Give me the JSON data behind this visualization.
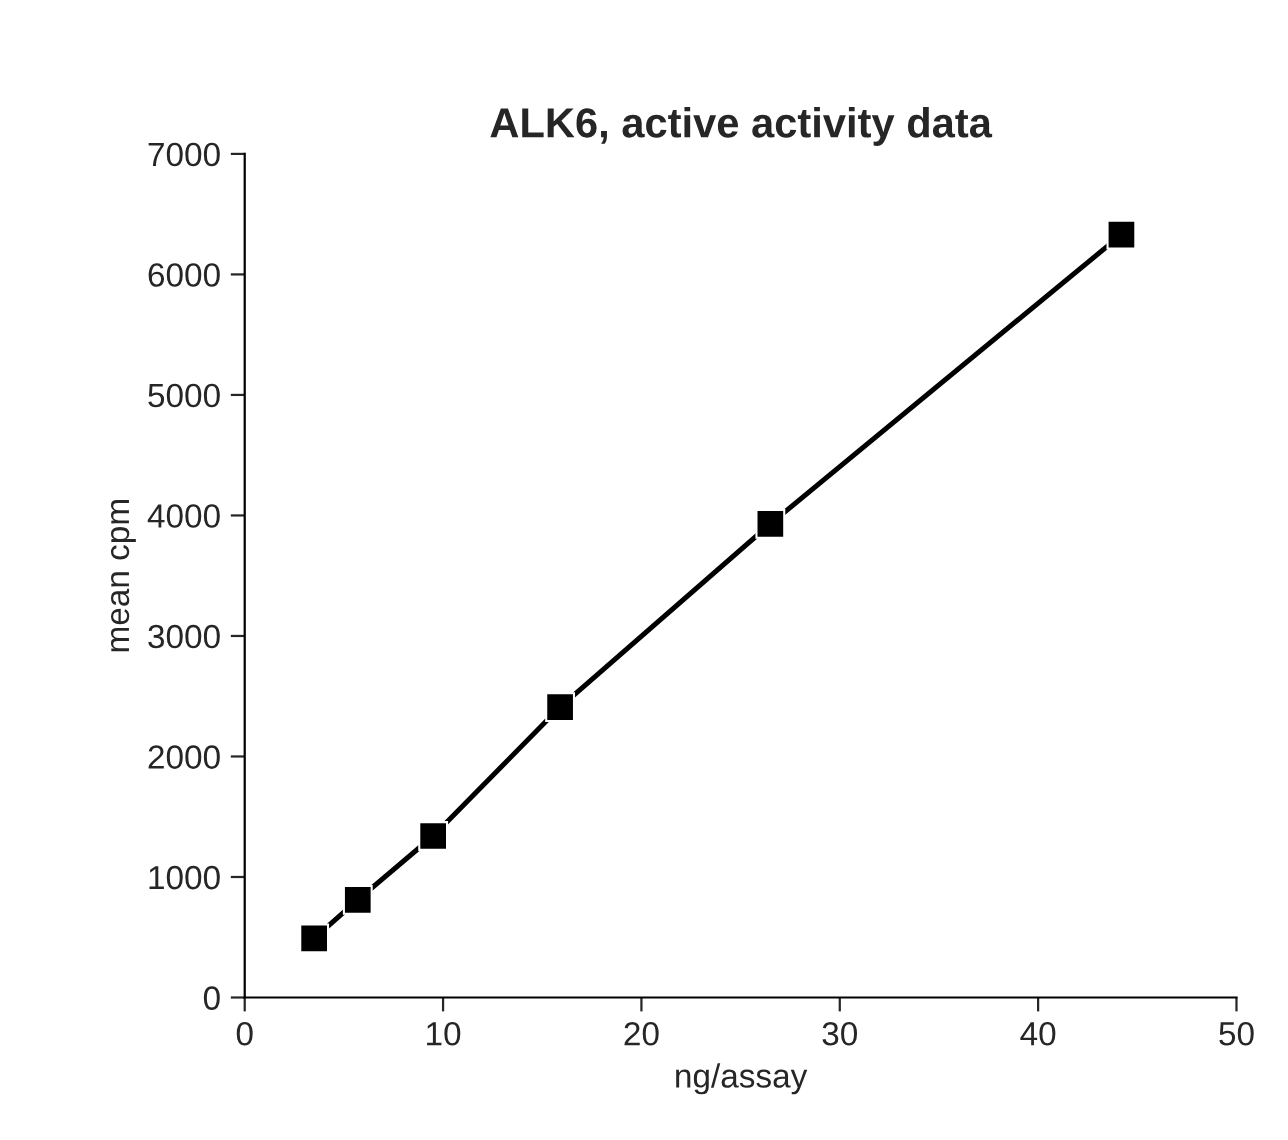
{
  "chart_data": {
    "type": "line",
    "title": "ALK6, active activity data",
    "xlabel": "ng/assay",
    "ylabel": "mean cpm",
    "x": [
      3.5,
      5.7,
      9.5,
      15.9,
      26.5,
      44.2
    ],
    "series": [
      {
        "color": "#000000",
        "values": [
          490,
          810,
          1340,
          2410,
          3930,
          6330
        ]
      }
    ],
    "xlim": [
      0,
      50
    ],
    "xticks": [
      0,
      10,
      20,
      30,
      40,
      50
    ],
    "ylim": [
      0,
      7000
    ],
    "yticks": [
      0,
      1000,
      2000,
      3000,
      4000,
      5000,
      6000,
      7000
    ],
    "marker": "square",
    "line_style": "solid",
    "grid": false,
    "legend": false
  }
}
